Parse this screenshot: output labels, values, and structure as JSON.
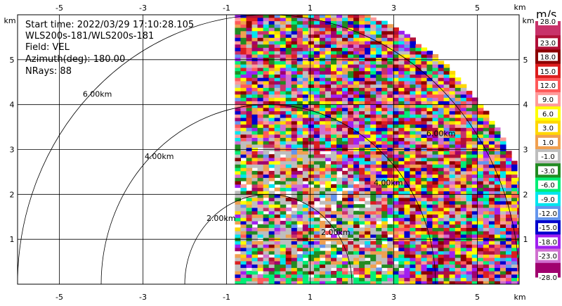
{
  "chart_data": {
    "type": "heatmap",
    "subtype": "radar PPI sector",
    "info": {
      "start_time": "Start time: 2022/03/29 17:10:28.105",
      "instrument": "WLS200s-181/WLS200s-181",
      "field": "Field: VEL",
      "azimuth": "Azimuth(deg): 180.00",
      "nrays": "NRays: 88"
    },
    "axis_unit": "km",
    "x_range": [
      -6,
      6
    ],
    "y_range": [
      0,
      6
    ],
    "x_ticks": [
      "-5",
      "-3",
      "-1",
      "1",
      "3",
      "5"
    ],
    "x_tick_values": [
      -5,
      -3,
      -1,
      1,
      3,
      5
    ],
    "y_ticks": [
      "1",
      "2",
      "3",
      "4",
      "5"
    ],
    "y_tick_values": [
      1,
      2,
      3,
      4,
      5
    ],
    "range_rings": [
      {
        "radius_km": 2,
        "label": "2.00km"
      },
      {
        "radius_km": 4,
        "label": "4.00km"
      },
      {
        "radius_km": 6,
        "label": "6.00km"
      }
    ],
    "colorbar": {
      "unit": "m/s",
      "labels": [
        "28.0",
        "23.0",
        "18.0",
        "15.0",
        "12.0",
        "9.0",
        "6.0",
        "3.0",
        "1.0",
        "-1.0",
        "-3.0",
        "-6.0",
        "-9.0",
        "-12.0",
        "-15.0",
        "-18.0",
        "-23.0",
        "-28.0"
      ],
      "colors": [
        "#c8326a",
        "#b01038",
        "#8b0000",
        "#dc1e1e",
        "#ff5a5a",
        "#ff9a9a",
        "#ffff00",
        "#ffd700",
        "#f0a050",
        "#bebebe",
        "#228b22",
        "#00ee76",
        "#00e5ee",
        "#6495ed",
        "#0000cd",
        "#a020f0",
        "#d070d0",
        "#a0006e"
      ]
    },
    "data_extent": {
      "x_km": [
        -0.8,
        6.2
      ],
      "y_km": [
        0,
        6.0
      ]
    }
  }
}
